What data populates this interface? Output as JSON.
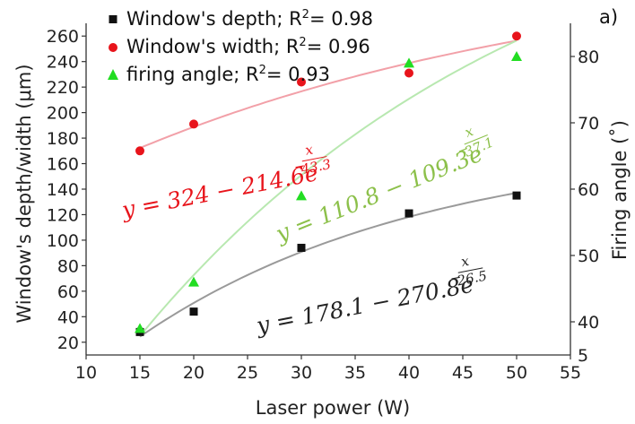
{
  "chart_data": {
    "type": "scatter",
    "panel_label": "a)",
    "xlabel": "Laser power (W)",
    "ylabel_left": "Window's depth/width (μm)",
    "ylabel_right": "Firing angle (˚)",
    "xlim": [
      10,
      55
    ],
    "ylim_left": [
      10,
      270
    ],
    "ylim_right": [
      35,
      85
    ],
    "x_ticks": [
      10,
      15,
      20,
      25,
      30,
      35,
      40,
      45,
      50,
      55
    ],
    "y_left_ticks": [
      20,
      40,
      60,
      80,
      100,
      120,
      140,
      160,
      180,
      200,
      220,
      240,
      260
    ],
    "y_right_ticks": [
      40,
      50,
      60,
      70,
      80
    ],
    "y_right_extra_label": "5",
    "series": [
      {
        "name": "Window's depth; R2= 0.98",
        "legend_prefix": "Window's depth; R",
        "legend_sup": "2",
        "legend_suffix": "= 0.98",
        "marker": "square",
        "color": "#111111",
        "fit_color": "#9a9a9a",
        "axis": "left",
        "x": [
          15,
          20,
          30,
          40,
          50
        ],
        "y": [
          28,
          44,
          94,
          121,
          135
        ],
        "fit": {
          "a": 178.1,
          "b": 270.8,
          "c": 26.5
        },
        "equation_main": "y = 178.1 − 270.8e",
        "equation_exp_num": "x",
        "equation_exp_den": "26.5"
      },
      {
        "name": "Window's width; R2= 0.96",
        "legend_prefix": "Window's width; R",
        "legend_sup": "2",
        "legend_suffix": "= 0.96",
        "marker": "circle",
        "color": "#e8141b",
        "fit_color": "#f2a0a8",
        "axis": "left",
        "x": [
          15,
          20,
          30,
          40,
          50
        ],
        "y": [
          170,
          191,
          224,
          231,
          260
        ],
        "fit": {
          "a": 324,
          "b": 214.6,
          "c": 43.3
        },
        "equation_main": "y = 324 − 214.6e",
        "equation_exp_num": "x",
        "equation_exp_den": "43.3"
      },
      {
        "name": "firing angle; R2= 0.93",
        "legend_prefix": "firing angle; R",
        "legend_sup": "2",
        "legend_suffix": "= 0.93",
        "marker": "triangle",
        "color": "#22dd22",
        "fit_color": "#b8e8b0",
        "equation_color": "#8cc04a",
        "axis": "right",
        "x": [
          15,
          20,
          30,
          40,
          50
        ],
        "y": [
          39,
          46,
          59,
          79,
          80
        ],
        "fit": {
          "a": 110.8,
          "b": 109.3,
          "c": 37.1
        },
        "equation_main": "y = 110.8 − 109.3e",
        "equation_exp_num": "x",
        "equation_exp_den": "37.1"
      }
    ]
  }
}
